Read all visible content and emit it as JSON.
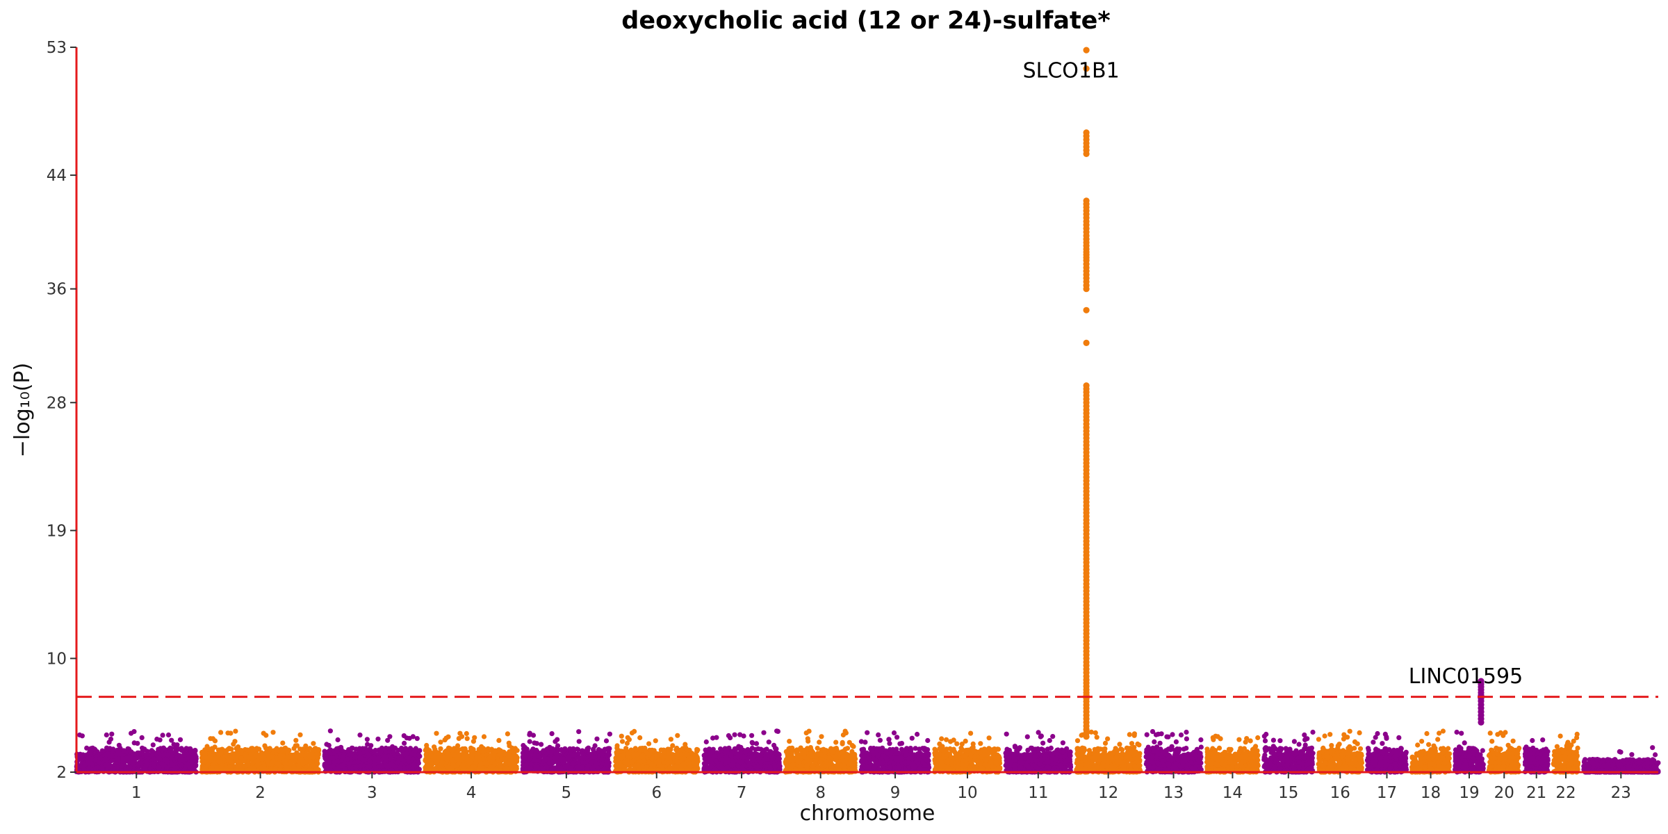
{
  "chart_data": {
    "type": "scatter",
    "title": "deoxycholic acid (12 or 24)-sulfate*",
    "xlabel": "chromosome",
    "ylabel": "−log₁₀(P)",
    "ylim": [
      2,
      53
    ],
    "yticks": [
      2,
      10,
      19,
      28,
      36,
      44,
      53
    ],
    "threshold": 7.3,
    "colors": {
      "a": "#8B008B",
      "b": "#F07C0C",
      "axis": "#E41A1C"
    },
    "chromosomes": [
      {
        "label": "1",
        "len": 249
      },
      {
        "label": "2",
        "len": 243
      },
      {
        "label": "3",
        "len": 198
      },
      {
        "label": "4",
        "len": 191
      },
      {
        "label": "5",
        "len": 181
      },
      {
        "label": "6",
        "len": 171
      },
      {
        "label": "7",
        "len": 159
      },
      {
        "label": "8",
        "len": 146
      },
      {
        "label": "9",
        "len": 141
      },
      {
        "label": "10",
        "len": 136
      },
      {
        "label": "11",
        "len": 135
      },
      {
        "label": "12",
        "len": 133
      },
      {
        "label": "13",
        "len": 115
      },
      {
        "label": "14",
        "len": 107
      },
      {
        "label": "15",
        "len": 102
      },
      {
        "label": "16",
        "len": 90
      },
      {
        "label": "17",
        "len": 81
      },
      {
        "label": "18",
        "len": 78
      },
      {
        "label": "19",
        "len": 59
      },
      {
        "label": "20",
        "len": 63
      },
      {
        "label": "21",
        "len": 48
      },
      {
        "label": "22",
        "len": 51
      },
      {
        "label": "23",
        "len": 155
      }
    ],
    "peaks": [
      {
        "chrom": "12",
        "pos": 21,
        "values": [
          52.8,
          51.5,
          47.0,
          46.5,
          45.5,
          42.2,
          41.5,
          40.5,
          39.5,
          38.8,
          38.0,
          37.5,
          37.0,
          36.5,
          36.0,
          34.5,
          32.2,
          29.2,
          28.5,
          27.5,
          26.5,
          25.5,
          24.5,
          23.5,
          22.5,
          21.5,
          20.5,
          19.5,
          18.5,
          17.5,
          16.5,
          15.5,
          14.5,
          13.5,
          12.5,
          11.5,
          10.5,
          9.5,
          8.5,
          7.8,
          7.2,
          6.5,
          5.5,
          4.5
        ]
      },
      {
        "chrom": "19",
        "pos": 54,
        "values": [
          8.4,
          8.2,
          8.0,
          7.8,
          7.6,
          7.4,
          7.0,
          6.5,
          6.0,
          5.5
        ]
      }
    ],
    "annotations": [
      {
        "text": "SLCO1B1",
        "chrom": "12",
        "pos": 21,
        "y": 51.4
      },
      {
        "text": "LINC01595",
        "chrom": "19",
        "pos": 54,
        "y": 8.8
      }
    ]
  }
}
